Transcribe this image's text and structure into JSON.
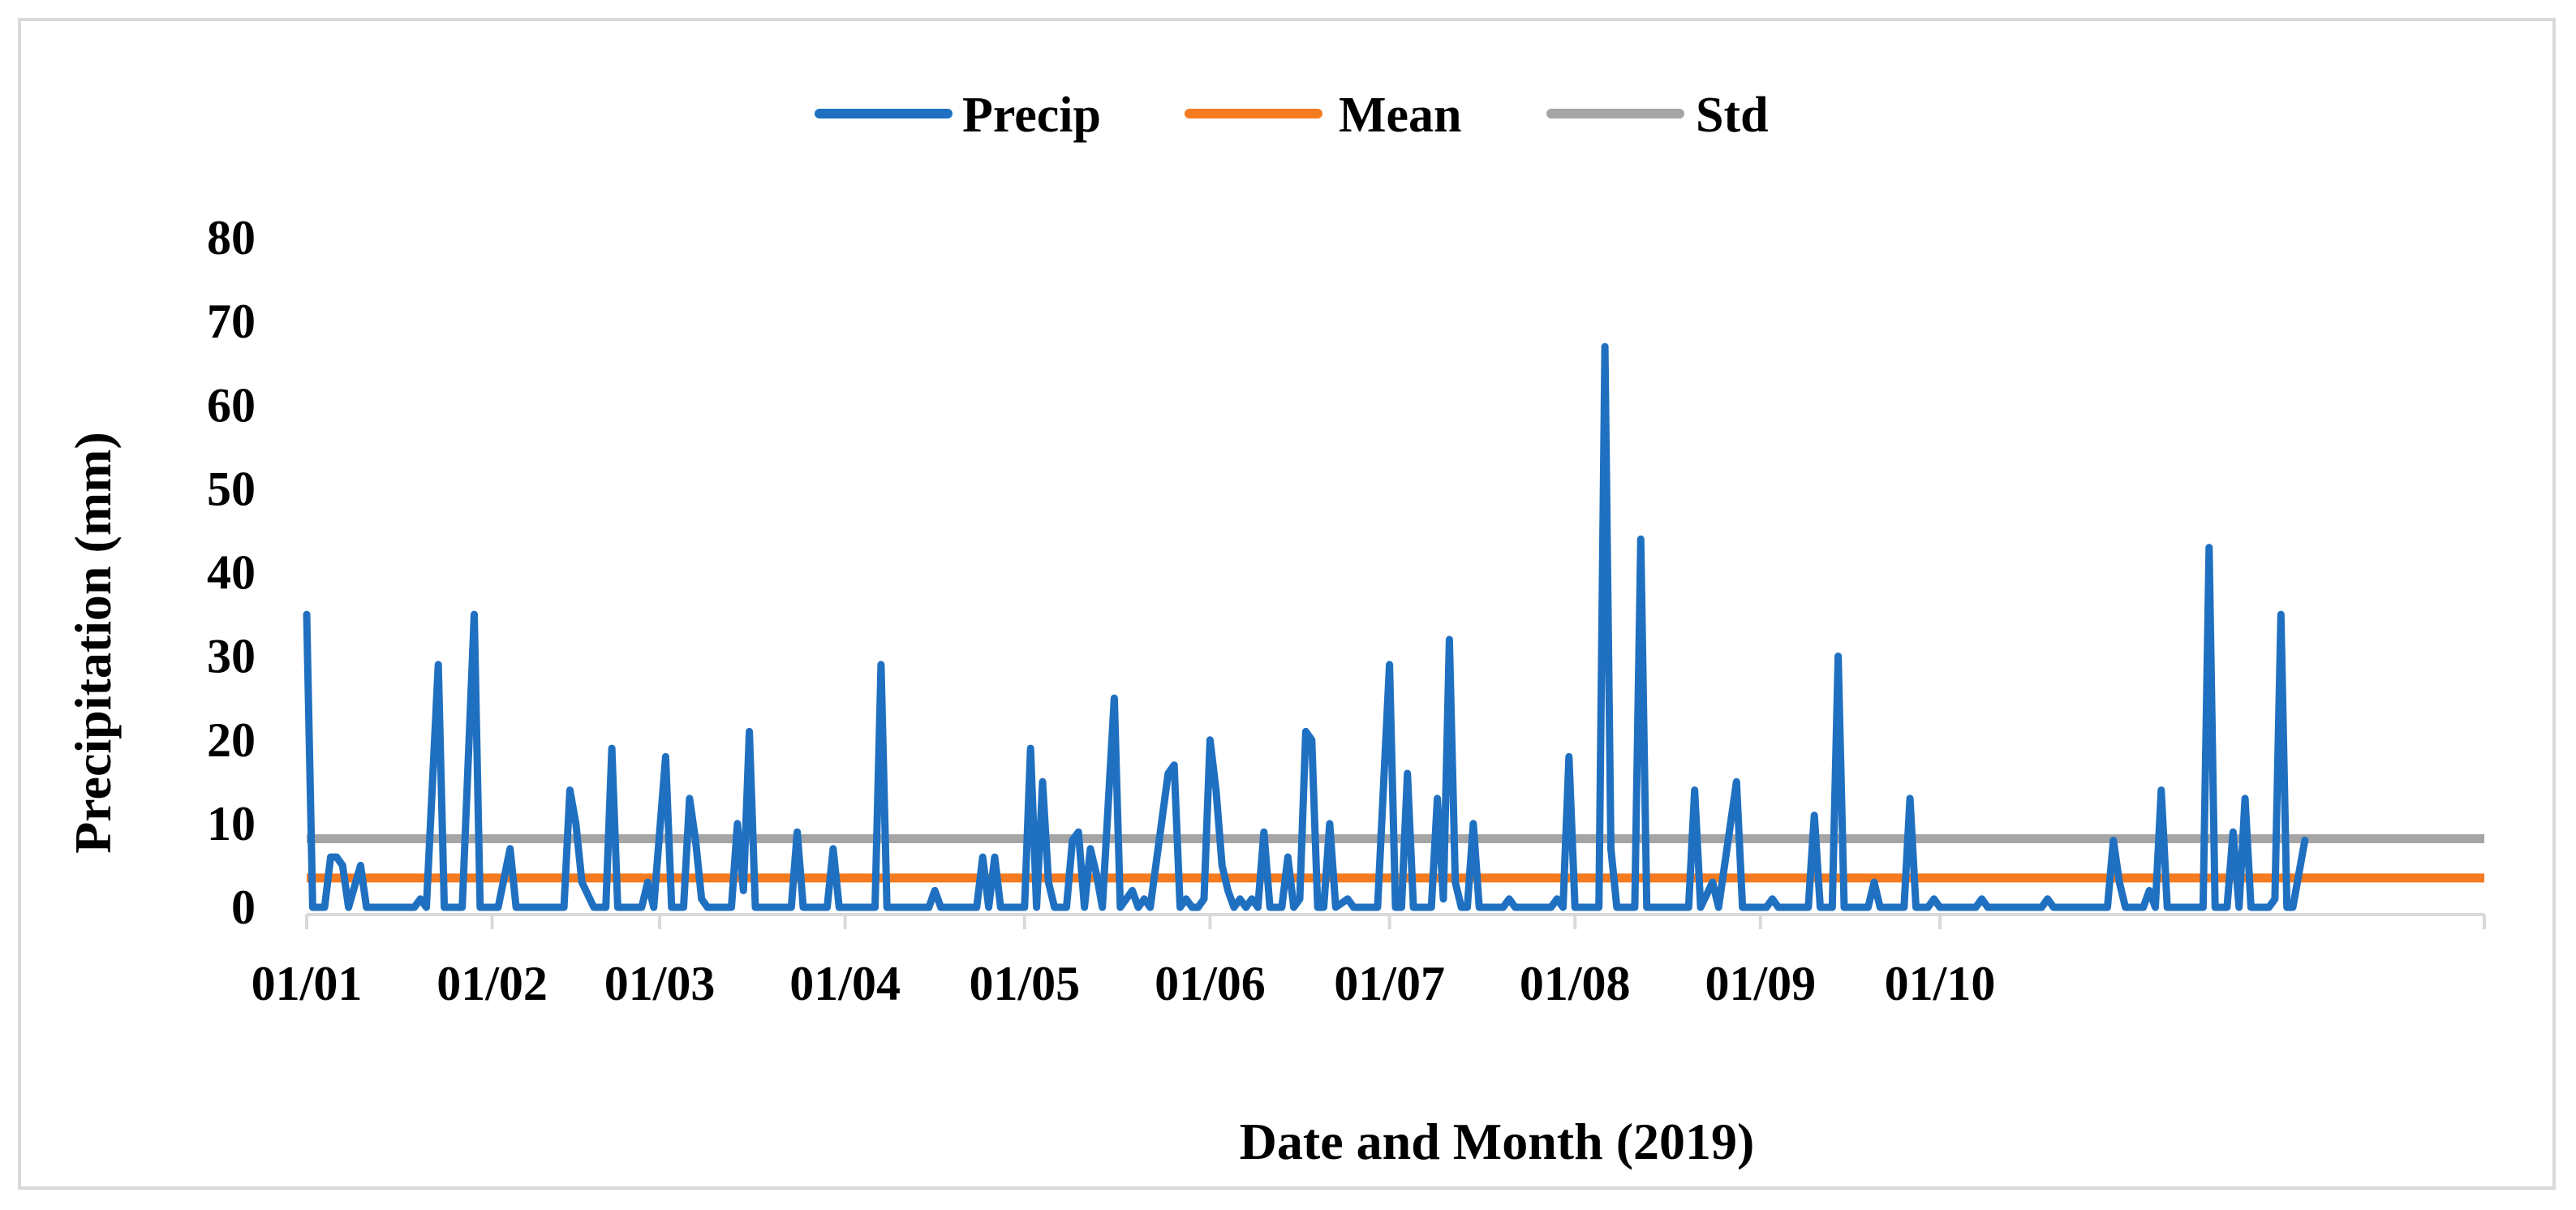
{
  "chart_data": {
    "type": "line",
    "title": "",
    "xlabel": "Date and Month (2019)",
    "ylabel": "Precipitation (mm)",
    "ylim": [
      0,
      80
    ],
    "yticks": [
      0,
      10,
      20,
      30,
      40,
      50,
      60,
      70,
      80
    ],
    "x_range_days": [
      1,
      365
    ],
    "xtick_labels": [
      {
        "label": "01/01",
        "day": 1
      },
      {
        "label": "01/02",
        "day": 32
      },
      {
        "label": "01/03",
        "day": 60
      },
      {
        "label": "01/04",
        "day": 91
      },
      {
        "label": "01/05",
        "day": 121
      },
      {
        "label": "01/06",
        "day": 152
      },
      {
        "label": "01/07",
        "day": 182
      },
      {
        "label": "01/08",
        "day": 213
      },
      {
        "label": "01/09",
        "day": 244
      },
      {
        "label": "01/10",
        "day": 274
      }
    ],
    "legend": {
      "placement": "top-center"
    },
    "grid": false,
    "colors": {
      "precip": "#1f70c1",
      "mean": "#f47b20",
      "std": "#a5a5a5",
      "frame": "#d9d9d9",
      "axis": "#d9d9d9"
    },
    "series": [
      {
        "name": "Precip",
        "color": "#1f70c1",
        "points": [
          [
            1,
            35
          ],
          [
            2,
            0
          ],
          [
            4,
            0
          ],
          [
            5,
            6
          ],
          [
            6,
            6
          ],
          [
            7,
            5
          ],
          [
            8,
            0
          ],
          [
            10,
            5
          ],
          [
            11,
            0
          ],
          [
            19,
            0
          ],
          [
            20,
            1
          ],
          [
            21,
            0
          ],
          [
            23,
            29
          ],
          [
            24,
            0
          ],
          [
            27,
            0
          ],
          [
            29,
            35
          ],
          [
            30,
            0
          ],
          [
            33,
            0
          ],
          [
            35,
            7
          ],
          [
            36,
            0
          ],
          [
            44,
            0
          ],
          [
            45,
            14
          ],
          [
            46,
            10
          ],
          [
            47,
            3
          ],
          [
            49,
            0
          ],
          [
            51,
            0
          ],
          [
            52,
            19
          ],
          [
            53,
            0
          ],
          [
            57,
            0
          ],
          [
            58,
            3
          ],
          [
            59,
            0
          ],
          [
            61,
            18
          ],
          [
            62,
            0
          ],
          [
            63,
            0
          ],
          [
            64,
            0
          ],
          [
            65,
            13
          ],
          [
            66,
            8
          ],
          [
            67,
            1
          ],
          [
            68,
            0
          ],
          [
            72,
            0
          ],
          [
            73,
            10
          ],
          [
            74,
            2
          ],
          [
            75,
            21
          ],
          [
            76,
            0
          ],
          [
            82,
            0
          ],
          [
            83,
            9
          ],
          [
            84,
            0
          ],
          [
            88,
            0
          ],
          [
            89,
            7
          ],
          [
            90,
            0
          ],
          [
            96,
            0
          ],
          [
            97,
            29
          ],
          [
            98,
            0
          ],
          [
            105,
            0
          ],
          [
            106,
            2
          ],
          [
            107,
            0
          ],
          [
            113,
            0
          ],
          [
            114,
            6
          ],
          [
            115,
            0
          ],
          [
            116,
            6
          ],
          [
            117,
            0
          ],
          [
            121,
            0
          ],
          [
            122,
            19
          ],
          [
            123,
            0
          ],
          [
            124,
            15
          ],
          [
            125,
            3
          ],
          [
            126,
            0
          ],
          [
            128,
            0
          ],
          [
            129,
            8
          ],
          [
            130,
            9
          ],
          [
            131,
            0
          ],
          [
            132,
            7
          ],
          [
            133,
            4
          ],
          [
            134,
            0
          ],
          [
            136,
            25
          ],
          [
            137,
            0
          ],
          [
            139,
            2
          ],
          [
            140,
            0
          ],
          [
            141,
            1
          ],
          [
            142,
            0
          ],
          [
            145,
            16
          ],
          [
            146,
            17
          ],
          [
            147,
            0
          ],
          [
            148,
            1
          ],
          [
            149,
            0
          ],
          [
            150,
            0
          ],
          [
            151,
            1
          ],
          [
            152,
            20
          ],
          [
            153,
            14
          ],
          [
            154,
            5
          ],
          [
            155,
            2
          ],
          [
            156,
            0
          ],
          [
            157,
            1
          ],
          [
            158,
            0
          ],
          [
            159,
            1
          ],
          [
            160,
            0
          ],
          [
            161,
            9
          ],
          [
            162,
            0
          ],
          [
            164,
            0
          ],
          [
            165,
            6
          ],
          [
            166,
            0
          ],
          [
            167,
            1
          ],
          [
            168,
            21
          ],
          [
            169,
            20
          ],
          [
            170,
            0
          ],
          [
            171,
            0
          ],
          [
            172,
            10
          ],
          [
            173,
            0
          ],
          [
            175,
            1
          ],
          [
            176,
            0
          ],
          [
            180,
            0
          ],
          [
            182,
            29
          ],
          [
            183,
            0
          ],
          [
            184,
            0
          ],
          [
            185,
            16
          ],
          [
            186,
            0
          ],
          [
            189,
            0
          ],
          [
            190,
            13
          ],
          [
            191,
            1
          ],
          [
            192,
            32
          ],
          [
            193,
            3
          ],
          [
            194,
            0
          ],
          [
            195,
            0
          ],
          [
            196,
            10
          ],
          [
            197,
            0
          ],
          [
            201,
            0
          ],
          [
            202,
            1
          ],
          [
            203,
            0
          ],
          [
            204,
            0
          ],
          [
            209,
            0
          ],
          [
            210,
            1
          ],
          [
            211,
            0
          ],
          [
            212,
            18
          ],
          [
            213,
            0
          ],
          [
            217,
            0
          ],
          [
            218,
            67
          ],
          [
            219,
            7
          ],
          [
            220,
            0
          ],
          [
            223,
            0
          ],
          [
            224,
            44
          ],
          [
            225,
            0
          ],
          [
            232,
            0
          ],
          [
            233,
            14
          ],
          [
            234,
            0
          ],
          [
            236,
            3
          ],
          [
            237,
            0
          ],
          [
            240,
            15
          ],
          [
            241,
            0
          ],
          [
            245,
            0
          ],
          [
            246,
            1
          ],
          [
            247,
            0
          ],
          [
            249,
            0
          ],
          [
            252,
            0
          ],
          [
            253,
            11
          ],
          [
            254,
            0
          ],
          [
            255,
            0
          ],
          [
            256,
            0
          ],
          [
            257,
            30
          ],
          [
            258,
            0
          ],
          [
            262,
            0
          ],
          [
            263,
            3
          ],
          [
            264,
            0
          ],
          [
            268,
            0
          ],
          [
            269,
            13
          ],
          [
            270,
            0
          ],
          [
            272,
            0
          ],
          [
            273,
            1
          ],
          [
            274,
            0
          ],
          [
            280,
            0
          ],
          [
            281,
            1
          ],
          [
            282,
            0
          ],
          [
            291,
            0
          ],
          [
            292,
            1
          ],
          [
            293,
            0
          ],
          [
            300,
            0
          ],
          [
            302,
            0
          ],
          [
            303,
            8
          ],
          [
            304,
            3
          ],
          [
            305,
            0
          ],
          [
            308,
            0
          ],
          [
            309,
            2
          ],
          [
            310,
            0
          ],
          [
            311,
            14
          ],
          [
            312,
            0
          ],
          [
            318,
            0
          ],
          [
            319,
            43
          ],
          [
            320,
            0
          ],
          [
            322,
            0
          ],
          [
            323,
            9
          ],
          [
            324,
            0
          ],
          [
            325,
            13
          ],
          [
            326,
            0
          ],
          [
            329,
            0
          ],
          [
            330,
            1
          ],
          [
            331,
            35
          ],
          [
            332,
            0
          ],
          [
            333,
            0
          ],
          [
            335,
            8
          ]
        ]
      },
      {
        "name": "Mean",
        "color": "#f47b20",
        "value": 3.5
      },
      {
        "name": "Std",
        "color": "#a5a5a5",
        "value": 8.2
      }
    ]
  }
}
